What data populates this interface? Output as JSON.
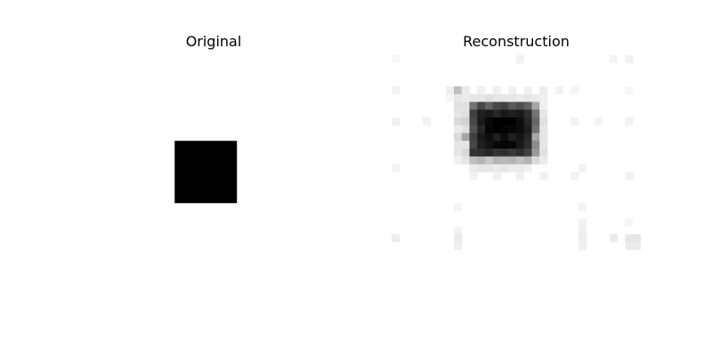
{
  "figure": {
    "original_title": "Original",
    "reconstruction_title": "Reconstruction"
  },
  "image_grid_size": 32,
  "colormap": "gray_r",
  "original": {
    "square_rows": [
      11,
      19
    ],
    "square_cols": [
      11,
      19
    ],
    "value": 1.0
  },
  "reconstruction": {
    "pixels": [
      [
        0,
        0,
        1,
        0.03
      ],
      [
        0,
        16,
        1,
        0.05
      ],
      [
        0,
        28,
        1,
        0.04
      ],
      [
        0,
        30,
        1,
        0.05
      ],
      [
        4,
        0,
        1,
        0.05
      ],
      [
        4,
        7,
        1,
        0.06
      ],
      [
        4,
        8,
        1,
        0.25
      ],
      [
        4,
        9,
        1,
        0.08
      ],
      [
        4,
        11,
        1,
        0.05
      ],
      [
        4,
        13,
        1,
        0.06
      ],
      [
        4,
        15,
        1,
        0.06
      ],
      [
        4,
        17,
        1,
        0.06
      ],
      [
        4,
        19,
        1,
        0.07
      ],
      [
        4,
        21,
        1,
        0.05
      ],
      [
        4,
        23,
        1,
        0.04
      ],
      [
        4,
        30,
        1,
        0.04
      ],
      [
        5,
        7,
        1,
        0.04
      ],
      [
        5,
        8,
        1,
        0.1
      ],
      [
        5,
        9,
        1,
        0.08
      ],
      [
        5,
        10,
        1,
        0.1
      ],
      [
        5,
        11,
        1,
        0.1
      ],
      [
        5,
        12,
        1,
        0.12
      ],
      [
        5,
        13,
        1,
        0.1
      ],
      [
        5,
        14,
        1,
        0.1
      ],
      [
        5,
        15,
        1,
        0.1
      ],
      [
        5,
        16,
        1,
        0.08
      ],
      [
        5,
        17,
        1,
        0.1
      ],
      [
        5,
        18,
        1,
        0.08
      ],
      [
        5,
        19,
        1,
        0.06
      ],
      [
        6,
        8,
        1,
        0.12
      ],
      [
        6,
        9,
        1,
        0.12
      ],
      [
        6,
        10,
        1,
        0.55
      ],
      [
        6,
        11,
        1,
        0.72
      ],
      [
        6,
        12,
        1,
        0.62
      ],
      [
        6,
        13,
        1,
        0.72
      ],
      [
        6,
        14,
        1,
        0.75
      ],
      [
        6,
        15,
        1,
        0.65
      ],
      [
        6,
        16,
        1,
        0.7
      ],
      [
        6,
        17,
        1,
        0.62
      ],
      [
        6,
        18,
        1,
        0.35
      ],
      [
        6,
        19,
        1,
        0.06
      ],
      [
        7,
        8,
        1,
        0.1
      ],
      [
        7,
        9,
        1,
        0.12
      ],
      [
        7,
        10,
        1,
        0.75
      ],
      [
        7,
        11,
        1,
        0.88
      ],
      [
        7,
        12,
        1,
        0.9
      ],
      [
        7,
        13,
        1,
        0.85
      ],
      [
        7,
        14,
        1,
        0.9
      ],
      [
        7,
        15,
        1,
        0.88
      ],
      [
        7,
        16,
        1,
        0.9
      ],
      [
        7,
        17,
        1,
        0.82
      ],
      [
        7,
        18,
        1,
        0.55
      ],
      [
        7,
        19,
        1,
        0.1
      ],
      [
        8,
        8,
        1,
        0.15
      ],
      [
        8,
        9,
        1,
        0.18
      ],
      [
        8,
        10,
        1,
        0.72
      ],
      [
        8,
        11,
        1,
        0.9
      ],
      [
        8,
        12,
        1,
        0.97
      ],
      [
        8,
        13,
        1,
        1.0
      ],
      [
        8,
        14,
        1,
        1.0
      ],
      [
        8,
        15,
        1,
        1.0
      ],
      [
        8,
        16,
        1,
        0.95
      ],
      [
        8,
        17,
        1,
        0.85
      ],
      [
        8,
        18,
        1,
        0.6
      ],
      [
        8,
        19,
        1,
        0.12
      ],
      [
        9,
        8,
        1,
        0.08
      ],
      [
        9,
        9,
        1,
        0.12
      ],
      [
        9,
        10,
        1,
        0.68
      ],
      [
        9,
        11,
        1,
        0.85
      ],
      [
        9,
        12,
        1,
        0.98
      ],
      [
        9,
        13,
        1,
        1.0
      ],
      [
        9,
        14,
        1,
        0.98
      ],
      [
        9,
        15,
        1,
        0.97
      ],
      [
        9,
        16,
        1,
        0.95
      ],
      [
        9,
        17,
        1,
        0.88
      ],
      [
        9,
        18,
        1,
        0.55
      ],
      [
        9,
        19,
        1,
        0.1
      ],
      [
        10,
        8,
        1,
        0.15
      ],
      [
        10,
        9,
        1,
        0.35
      ],
      [
        10,
        10,
        1,
        0.75
      ],
      [
        10,
        11,
        1,
        0.9
      ],
      [
        10,
        12,
        1,
        0.95
      ],
      [
        10,
        13,
        1,
        0.88
      ],
      [
        10,
        14,
        1,
        0.95
      ],
      [
        10,
        15,
        1,
        0.88
      ],
      [
        10,
        16,
        1,
        0.92
      ],
      [
        10,
        17,
        1,
        0.85
      ],
      [
        10,
        18,
        1,
        0.35
      ],
      [
        10,
        19,
        1,
        0.1
      ],
      [
        11,
        8,
        1,
        0.1
      ],
      [
        11,
        9,
        1,
        0.1
      ],
      [
        11,
        10,
        1,
        0.72
      ],
      [
        11,
        11,
        1,
        0.88
      ],
      [
        11,
        12,
        1,
        0.92
      ],
      [
        11,
        13,
        1,
        0.97
      ],
      [
        11,
        14,
        1,
        0.98
      ],
      [
        11,
        15,
        1,
        0.97
      ],
      [
        11,
        16,
        1,
        0.9
      ],
      [
        11,
        17,
        1,
        0.82
      ],
      [
        11,
        18,
        1,
        0.45
      ],
      [
        11,
        19,
        1,
        0.1
      ],
      [
        12,
        8,
        1,
        0.1
      ],
      [
        12,
        9,
        1,
        0.15
      ],
      [
        12,
        10,
        1,
        0.8
      ],
      [
        12,
        11,
        1,
        0.82
      ],
      [
        12,
        12,
        1,
        0.85
      ],
      [
        12,
        13,
        1,
        0.8
      ],
      [
        12,
        14,
        1,
        0.82
      ],
      [
        12,
        15,
        1,
        0.78
      ],
      [
        12,
        16,
        1,
        0.82
      ],
      [
        12,
        17,
        1,
        0.75
      ],
      [
        12,
        18,
        1,
        0.4
      ],
      [
        12,
        19,
        1,
        0.12
      ],
      [
        13,
        8,
        1,
        0.06
      ],
      [
        13,
        9,
        1,
        0.1
      ],
      [
        13,
        10,
        1,
        0.25
      ],
      [
        13,
        11,
        1,
        0.3
      ],
      [
        13,
        12,
        1,
        0.22
      ],
      [
        13,
        13,
        1,
        0.3
      ],
      [
        13,
        14,
        1,
        0.28
      ],
      [
        13,
        15,
        1,
        0.3
      ],
      [
        13,
        16,
        1,
        0.25
      ],
      [
        13,
        17,
        1,
        0.3
      ],
      [
        13,
        18,
        1,
        0.15
      ],
      [
        13,
        19,
        1,
        0.08
      ],
      [
        14,
        10,
        1,
        0.08
      ],
      [
        14,
        11,
        1,
        0.1
      ],
      [
        14,
        12,
        1,
        0.1
      ],
      [
        14,
        13,
        1,
        0.08
      ],
      [
        14,
        14,
        1,
        0.1
      ],
      [
        14,
        15,
        1,
        0.08
      ],
      [
        14,
        16,
        1,
        0.08
      ],
      [
        14,
        17,
        1,
        0.06
      ],
      [
        15,
        10,
        1,
        0.05
      ],
      [
        15,
        13,
        1,
        0.06
      ],
      [
        15,
        16,
        1,
        0.06
      ],
      [
        15,
        19,
        1,
        0.05
      ],
      [
        15,
        23,
        1,
        0.05
      ],
      [
        15,
        30,
        1,
        0.05
      ],
      [
        8,
        0,
        1,
        0.06
      ],
      [
        8,
        4,
        1,
        0.05
      ],
      [
        8,
        23,
        1,
        0.05
      ],
      [
        8,
        26,
        1,
        0.04
      ],
      [
        8,
        30,
        1,
        0.05
      ],
      [
        14,
        0,
        1,
        0.05
      ],
      [
        14,
        24,
        1,
        0.05
      ],
      [
        19,
        8,
        1,
        0.04
      ],
      [
        19,
        24,
        1,
        0.05
      ],
      [
        21,
        24,
        1,
        0.05
      ],
      [
        21,
        30,
        1,
        0.04
      ],
      [
        22,
        8,
        1,
        0.05
      ],
      [
        22,
        24,
        1,
        0.06
      ],
      [
        23,
        0,
        1,
        0.07
      ],
      [
        23,
        8,
        1,
        0.08
      ],
      [
        23,
        24,
        1,
        0.07
      ],
      [
        23,
        28,
        1,
        0.08
      ],
      [
        23,
        30,
        1,
        0.1
      ],
      [
        23,
        31,
        1,
        0.1
      ],
      [
        24,
        8,
        1,
        0.06
      ],
      [
        24,
        24,
        1,
        0.06
      ],
      [
        24,
        30,
        1,
        0.08
      ],
      [
        24,
        31,
        1,
        0.08
      ]
    ]
  }
}
